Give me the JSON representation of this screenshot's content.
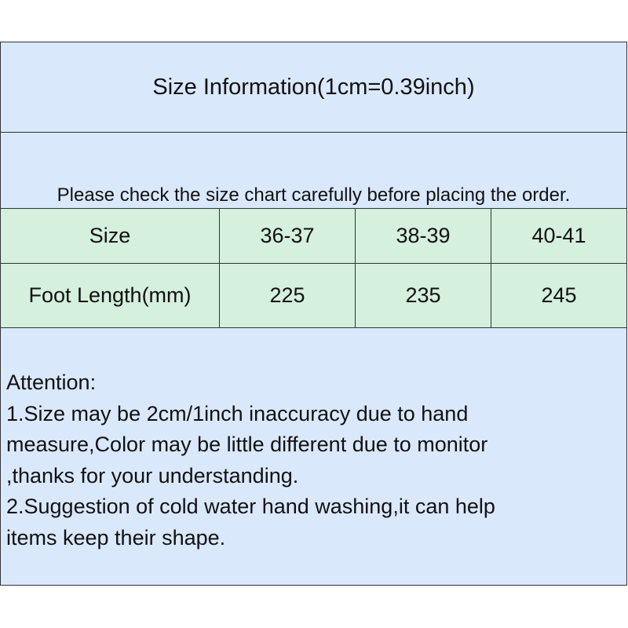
{
  "title": "Size Information(1cm=0.39inch)",
  "subtitle": "Please check the size chart carefully before placing the order.",
  "table": {
    "rows": [
      [
        "Size",
        "36-37",
        "38-39",
        "40-41"
      ],
      [
        "Foot Length(mm)",
        "225",
        "235",
        "245"
      ]
    ]
  },
  "notes": {
    "lines": [
      "Attention:",
      "1.Size may be 2cm/1inch inaccuracy due to hand",
      "measure,Color may be little different due to monitor",
      ",thanks for your understanding.",
      "2.Suggestion of cold water hand washing,it can help",
      "items keep their shape."
    ]
  },
  "colors": {
    "header_bg": "#dae8fc",
    "table_bg": "#d5f0dc",
    "border": "#333333"
  }
}
